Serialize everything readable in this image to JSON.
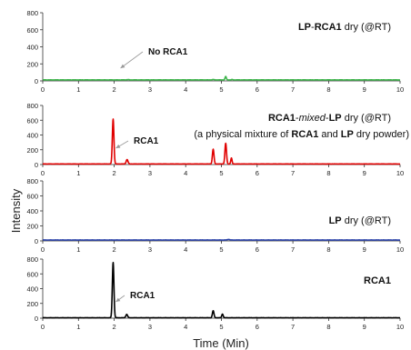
{
  "figure": {
    "ylabel": "Intensity",
    "xlabel": "Time (Min)"
  },
  "chart_data": [
    {
      "type": "line",
      "panel_label": [
        {
          "t": "LP",
          "b": true
        },
        {
          "t": "-",
          "b": false
        },
        {
          "t": "RCA1",
          "b": true
        },
        {
          "t": " dry (@RT)",
          "b": false
        }
      ],
      "annotation": {
        "text": "No RCA1",
        "x": 2.1
      },
      "color": "#3cb34a",
      "xlim": [
        0,
        10
      ],
      "ylim": [
        0,
        800
      ],
      "xticks": [
        0,
        1,
        2,
        3,
        4,
        5,
        6,
        7,
        8,
        9,
        10
      ],
      "yticks": [
        0,
        200,
        400,
        600,
        800
      ],
      "baseline": 12,
      "peaks": [
        {
          "x": 2.38,
          "h": 3,
          "w": 0.03
        },
        {
          "x": 4.77,
          "h": 4,
          "w": 0.025
        },
        {
          "x": 5.12,
          "h": 40,
          "w": 0.018
        },
        {
          "x": 5.3,
          "h": 4,
          "w": 0.02
        }
      ]
    },
    {
      "type": "line",
      "panel_label": [
        {
          "t": "RCA1",
          "b": true
        },
        {
          "t": "-",
          "b": false
        },
        {
          "t": "mixed",
          "b": false,
          "i": true
        },
        {
          "t": "-",
          "b": false
        },
        {
          "t": "LP",
          "b": true
        },
        {
          "t": " dry (@RT)",
          "b": false
        }
      ],
      "panel_label2": [
        {
          "t": "(a physical mixture of ",
          "b": false
        },
        {
          "t": "RCA1",
          "b": true
        },
        {
          "t": " and ",
          "b": false
        },
        {
          "t": "LP",
          "b": true
        },
        {
          "t": " dry powder)",
          "b": false
        }
      ],
      "annotation": {
        "text": "RCA1",
        "x": 1.97
      },
      "color": "#e00000",
      "xlim": [
        0,
        10
      ],
      "ylim": [
        0,
        800
      ],
      "xticks": [
        0,
        1,
        2,
        3,
        4,
        5,
        6,
        7,
        8,
        9,
        10
      ],
      "yticks": [
        0,
        200,
        400,
        600,
        800
      ],
      "baseline": 8,
      "peaks": [
        {
          "x": 1.97,
          "h": 610,
          "w": 0.022
        },
        {
          "x": 2.36,
          "h": 60,
          "w": 0.025
        },
        {
          "x": 4.77,
          "h": 200,
          "w": 0.022
        },
        {
          "x": 5.12,
          "h": 280,
          "w": 0.022
        },
        {
          "x": 5.28,
          "h": 80,
          "w": 0.018
        }
      ]
    },
    {
      "type": "line",
      "panel_label": [
        {
          "t": "LP",
          "b": true
        },
        {
          "t": " dry (@RT)",
          "b": false
        }
      ],
      "color": "#2840a8",
      "xlim": [
        0,
        10
      ],
      "ylim": [
        0,
        800
      ],
      "xticks": [
        0,
        1,
        2,
        3,
        4,
        5,
        6,
        7,
        8,
        9,
        10
      ],
      "yticks": [
        0,
        200,
        400,
        600,
        800
      ],
      "baseline": 12,
      "peaks": [
        {
          "x": 5.2,
          "h": 8,
          "w": 0.03
        }
      ]
    },
    {
      "type": "line",
      "panel_label": [
        {
          "t": "RCA1",
          "b": true
        }
      ],
      "annotation": {
        "text": "RCA1",
        "x": 1.97
      },
      "color": "#000000",
      "xlim": [
        0,
        10
      ],
      "ylim": [
        0,
        800
      ],
      "xticks": [
        0,
        1,
        2,
        3,
        4,
        5,
        6,
        7,
        8,
        9,
        10
      ],
      "yticks": [
        0,
        200,
        400,
        600,
        800
      ],
      "baseline": 6,
      "peaks": [
        {
          "x": 1.97,
          "h": 750,
          "w": 0.022
        },
        {
          "x": 2.35,
          "h": 45,
          "w": 0.025
        },
        {
          "x": 4.77,
          "h": 95,
          "w": 0.022
        },
        {
          "x": 5.03,
          "h": 50,
          "w": 0.02
        }
      ]
    }
  ]
}
